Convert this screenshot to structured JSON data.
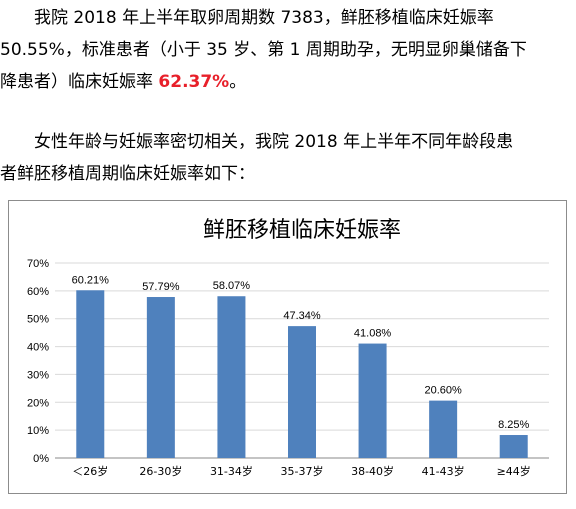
{
  "text": {
    "p1_a": "我院 2018 年上半年取卵周期数 7383，鲜胚移植临床妊娠率",
    "p1_b": "50.55%，标准患者（小于 35 岁、第 1 周期助孕，无明显卵巢储备下",
    "p1_c": "降患者）临床妊娠率 ",
    "p1_highlight": "62.37%",
    "p1_end": "。",
    "p2_a": "女性年龄与妊娠率密切相关，我院 2018 年上半年不同年龄段患",
    "p2_b": "者鲜胚移植周期临床妊娠率如下："
  },
  "colors": {
    "bar": "#4f81bd",
    "highlight": "#e8202a",
    "grid": "#d9d9d9",
    "axis": "#888888"
  },
  "chart_data": {
    "type": "bar",
    "title": "鲜胚移植临床妊娠率",
    "categories": [
      "＜26岁",
      "26-30岁",
      "31-34岁",
      "35-37岁",
      "38-40岁",
      "41-43岁",
      "≥44岁"
    ],
    "values": [
      60.21,
      57.79,
      58.07,
      47.34,
      41.08,
      20.6,
      8.25
    ],
    "data_labels": [
      "60.21%",
      "57.79%",
      "58.07%",
      "47.34%",
      "41.08%",
      "20.60%",
      "8.25%"
    ],
    "y_ticks": [
      "0%",
      "10%",
      "20%",
      "30%",
      "40%",
      "50%",
      "60%",
      "70%"
    ],
    "ylim": [
      0,
      70
    ],
    "grid": true,
    "legend": "none"
  }
}
